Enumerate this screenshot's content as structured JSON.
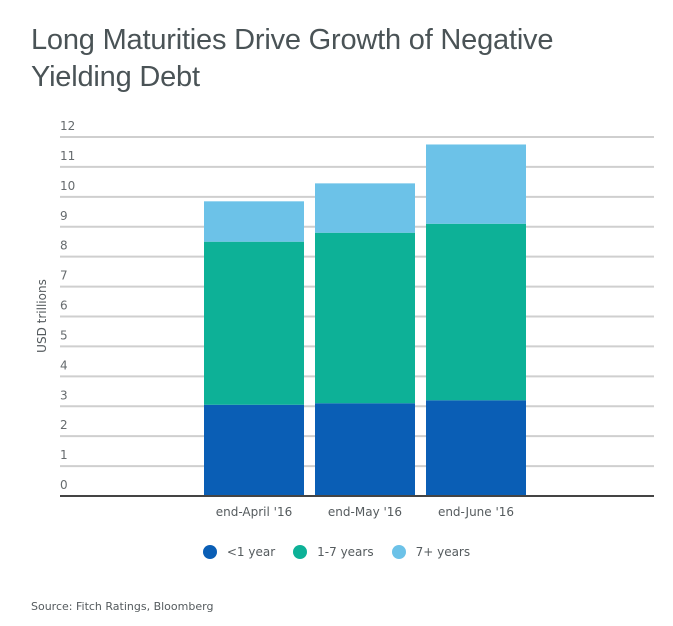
{
  "chart_data": {
    "type": "bar",
    "stacked": true,
    "title": "Long Maturities Drive Growth of Negative Yielding Debt",
    "xlabel": "",
    "ylabel": "USD trillions",
    "ylim": [
      0,
      12
    ],
    "yticks": [
      0,
      1,
      2,
      3,
      4,
      5,
      6,
      7,
      8,
      9,
      10,
      11,
      12
    ],
    "grid": true,
    "legend_position": "bottom",
    "categories": [
      "end-April '16",
      "end-May '16",
      "end-June '16"
    ],
    "series": [
      {
        "name": "<1 year",
        "color": "#0a5eb5",
        "values": [
          3.05,
          3.1,
          3.2
        ]
      },
      {
        "name": "1-7 years",
        "color": "#0db197",
        "values": [
          5.45,
          5.7,
          5.9
        ]
      },
      {
        "name": "7+ years",
        "color": "#6cc2e8",
        "values": [
          1.35,
          1.65,
          2.65
        ]
      }
    ],
    "totals": [
      9.85,
      10.45,
      11.75
    ],
    "source": "Source: Fitch Ratings, Bloomberg"
  }
}
